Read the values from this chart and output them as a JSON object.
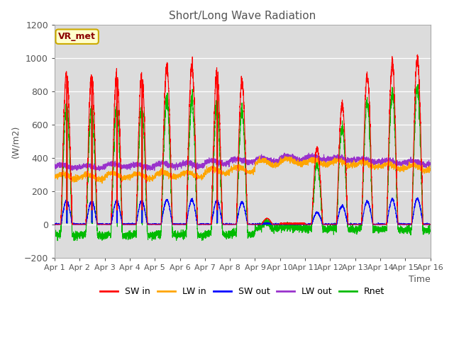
{
  "title": "Short/Long Wave Radiation",
  "xlabel": "Time",
  "ylabel": "(W/m2)",
  "ylim": [
    -200,
    1200
  ],
  "yticks": [
    -200,
    0,
    200,
    400,
    600,
    800,
    1000,
    1200
  ],
  "days": 15,
  "points_per_day": 288,
  "colors": {
    "SW_in": "#ff0000",
    "LW_in": "#ffa500",
    "SW_out": "#0000ff",
    "LW_out": "#9932cc",
    "Rnet": "#00bb00"
  },
  "plot_bg": "#dcdcdc",
  "fig_bg": "#ffffff",
  "legend_labels": [
    "SW in",
    "LW in",
    "SW out",
    "LW out",
    "Rnet"
  ],
  "annotation_text": "VR_met",
  "annotation_color": "#8b0000",
  "annotation_bg": "#ffffcc",
  "day_peaks_SW": [
    920,
    900,
    900,
    900,
    950,
    950,
    920,
    855,
    180,
    5,
    460,
    720,
    900,
    970,
    1000
  ],
  "lw_in_base": [
    290,
    285,
    295,
    290,
    300,
    300,
    320,
    330,
    370,
    380,
    375,
    370,
    360,
    350,
    340
  ],
  "lw_out_base": [
    350,
    345,
    355,
    350,
    360,
    360,
    375,
    385,
    390,
    400,
    400,
    395,
    385,
    375,
    370
  ]
}
